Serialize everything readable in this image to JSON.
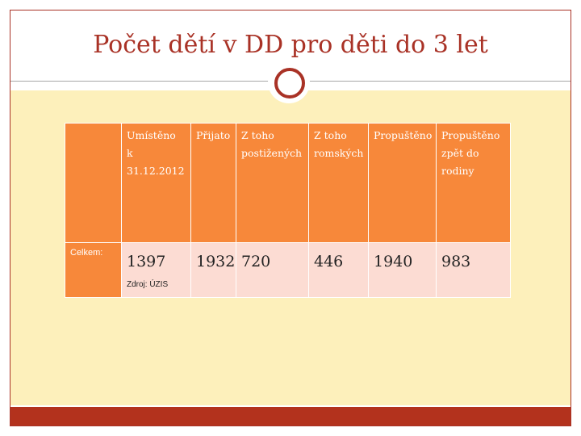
{
  "title": "Počet dětí v DD pro děti do 3 let",
  "colors": {
    "accent": "#a93226",
    "header_fill": "#f7883a",
    "row_fill": "#fcdcd3",
    "band": "#fdf0bb"
  },
  "table": {
    "headers": [
      "",
      "Umístěno\nk 31.12.2012",
      "Přijato",
      "Z toho\npostižených",
      "Z toho\nromských",
      "Propuštěno",
      "Propuštěno\nzpět do\nrodiny"
    ],
    "row": {
      "label": "Celkem:",
      "values": [
        "1397",
        "1932",
        "720",
        "446",
        "1940",
        "983"
      ]
    },
    "source": "Zdroj: ÚZIS"
  }
}
